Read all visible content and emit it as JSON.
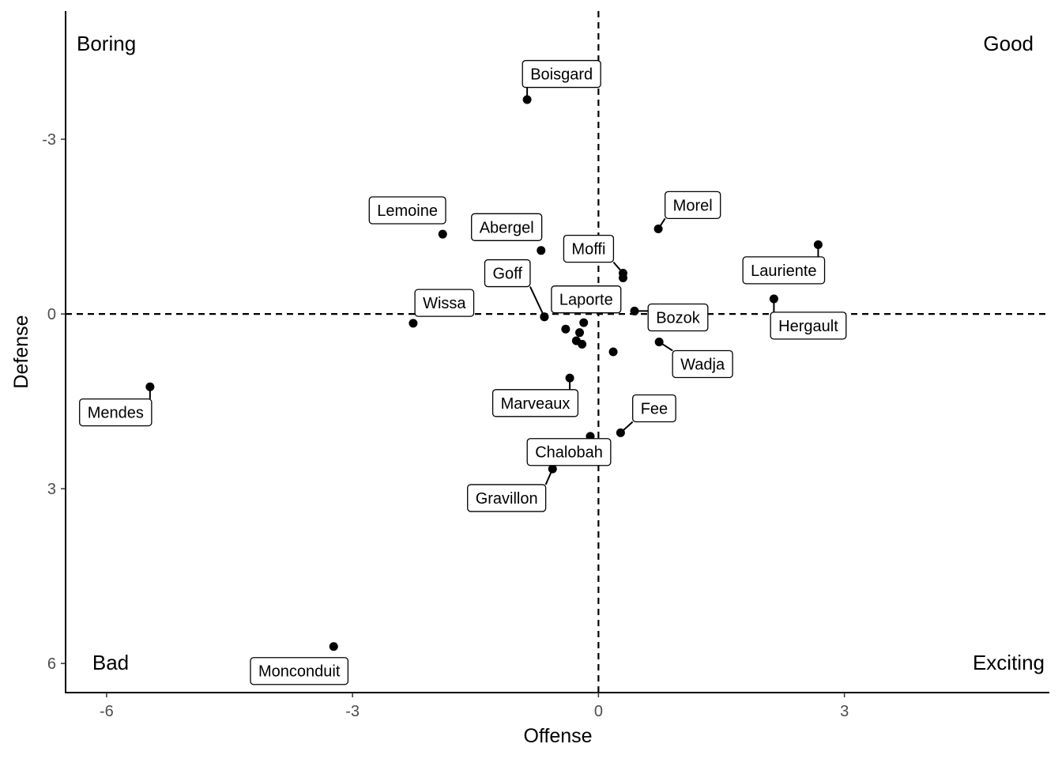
{
  "chart_data": {
    "type": "scatter",
    "title": "",
    "xlabel": "Offense",
    "ylabel": "Defense",
    "xlim": [
      -6.5,
      5.5
    ],
    "ylim": [
      6.5,
      -5.2
    ],
    "y_reversed": true,
    "x_ticks": [
      -6,
      -3,
      0,
      3
    ],
    "x_tick_labels": [
      "-6",
      "-3",
      "0",
      "3"
    ],
    "y_ticks": [
      -3,
      0,
      3,
      6
    ],
    "y_tick_labels": [
      "-3",
      "0",
      "3",
      "6"
    ],
    "reference_lines": {
      "x": 0,
      "y": 0,
      "style": "dashed"
    },
    "grid": false,
    "quadrant_labels": {
      "top_left": "Boring",
      "top_right": "Good",
      "bottom_left": "Bad",
      "bottom_right": "Exciting"
    },
    "points": [
      {
        "label": "Boisgard",
        "x": -0.87,
        "y": -3.68,
        "label_x": -0.45,
        "label_y": -4.12
      },
      {
        "label": "Lemoine",
        "x": -1.9,
        "y": -1.37,
        "label_x": -2.33,
        "label_y": -1.78
      },
      {
        "label": "Abergel",
        "x": -0.7,
        "y": -1.09,
        "label_x": -1.12,
        "label_y": -1.49
      },
      {
        "label": "Moffi",
        "x": 0.3,
        "y": -0.7,
        "label_x": -0.12,
        "label_y": -1.12
      },
      {
        "label": "Morel",
        "x": 0.73,
        "y": -1.46,
        "label_x": 1.15,
        "label_y": -1.87
      },
      {
        "label": "Goff",
        "x": -0.66,
        "y": 0.05,
        "label_x": -1.11,
        "label_y": -0.7
      },
      {
        "label": "Laporte",
        "x": -0.66,
        "y": 0.05,
        "label_x": -0.15,
        "label_y": -0.25
      },
      {
        "label": "Wissa",
        "x": -2.26,
        "y": 0.16,
        "label_x": -1.88,
        "label_y": -0.19
      },
      {
        "label": "Lauriente",
        "x": 2.68,
        "y": -1.19,
        "label_x": 2.26,
        "label_y": -0.75
      },
      {
        "label": "Hergault",
        "x": 2.14,
        "y": -0.26,
        "label_x": 2.56,
        "label_y": 0.2
      },
      {
        "label": "Bozok",
        "x": 0.44,
        "y": -0.05,
        "label_x": 0.97,
        "label_y": 0.06
      },
      {
        "label": "Wadja",
        "x": 0.74,
        "y": 0.48,
        "label_x": 1.27,
        "label_y": 0.86
      },
      {
        "label": "Mendes",
        "x": -5.47,
        "y": 1.25,
        "label_x": -5.89,
        "label_y": 1.69
      },
      {
        "label": "Marveaux",
        "x": -0.35,
        "y": 1.1,
        "label_x": -0.77,
        "label_y": 1.53
      },
      {
        "label": "Fee",
        "x": 0.27,
        "y": 2.04,
        "label_x": 0.68,
        "label_y": 1.62
      },
      {
        "label": "Chalobah",
        "x": -0.1,
        "y": 2.1,
        "label_x": -0.36,
        "label_y": 2.37
      },
      {
        "label": "Gravillon",
        "x": -0.56,
        "y": 2.66,
        "label_x": -1.12,
        "label_y": 3.16
      },
      {
        "label": "Monconduit",
        "x": -3.23,
        "y": 5.71,
        "label_x": -3.65,
        "label_y": 6.13
      },
      {
        "label": "",
        "x": 0.3,
        "y": -0.62
      },
      {
        "label": "",
        "x": -0.18,
        "y": 0.15
      },
      {
        "label": "",
        "x": -0.4,
        "y": 0.26
      },
      {
        "label": "",
        "x": -0.23,
        "y": 0.32
      },
      {
        "label": "",
        "x": -0.27,
        "y": 0.46
      },
      {
        "label": "",
        "x": -0.2,
        "y": 0.52
      },
      {
        "label": "",
        "x": 0.18,
        "y": 0.65
      }
    ]
  }
}
